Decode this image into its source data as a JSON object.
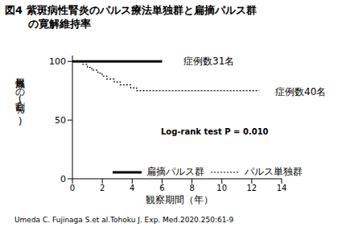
{
  "chart_data": {
    "type": "line",
    "title": "図4 紫斑病性腎炎のパルス療法単独群と扁摘パルス群\nの寛解維持率",
    "x_label": "観察期間（年）",
    "y_label": "再燃無しの割合(%)",
    "annotations": [
      "症例数31名",
      "症例数40名",
      "Log-rank test P = 0.010"
    ],
    "source": "Umeda C. Fujinaga S.et al.Tohoku J. Exp. Med.2020.250:61-9",
    "xlim": [
      0,
      14
    ],
    "xticks": [
      0,
      2,
      4,
      6,
      8,
      10,
      12,
      14
    ],
    "ylim": [
      0,
      105
    ],
    "yticks": [
      0,
      50,
      100
    ],
    "grid": false,
    "series": [
      {
        "name": "扁摘パルス群",
        "color": "#000000",
        "line_style": "solid",
        "x": [
          0,
          6.0
        ],
        "values": [
          100,
          100
        ]
      },
      {
        "name": "パルス単独群",
        "color": "#000000",
        "line_style": "dotted",
        "x": [
          0,
          0.7,
          1.0,
          1.3,
          1.7,
          2.0,
          2.3,
          2.8,
          3.2,
          3.9,
          4.3,
          12.5
        ],
        "values": [
          100,
          97.5,
          95,
          92.5,
          90,
          87.5,
          85,
          82.5,
          80,
          77.5,
          75,
          75
        ]
      }
    ]
  }
}
